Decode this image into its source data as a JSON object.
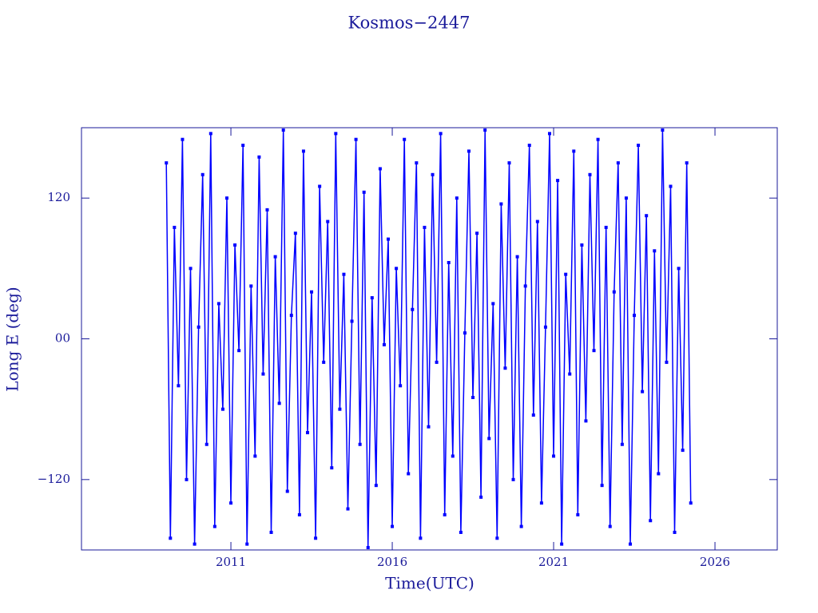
{
  "chart_data": {
    "type": "line",
    "title": "Kosmos−2447",
    "x_label": "Time(UTC)",
    "y_label": "Long E (deg)",
    "xlim": [
      2006.37,
      2027.93
    ],
    "ylim": [
      -180,
      180
    ],
    "xticks": [
      2011,
      2016,
      2021,
      2026
    ],
    "yticks": [
      {
        "value": -120,
        "label": "−120"
      },
      {
        "value": 0,
        "label": "00"
      },
      {
        "value": 120,
        "label": "120"
      }
    ],
    "axis_color": "#1a1a9a",
    "series": [
      {
        "color": "#0000ff",
        "x": [
          2009,
          2009.125,
          2009.25,
          2009.375,
          2009.5,
          2009.625,
          2009.75,
          2009.875,
          2010,
          2010.125,
          2010.25,
          2010.375,
          2010.5,
          2010.625,
          2010.75,
          2010.875,
          2011,
          2011.125,
          2011.25,
          2011.375,
          2011.5,
          2011.625,
          2011.75,
          2011.875,
          2012,
          2012.125,
          2012.25,
          2012.375,
          2012.5,
          2012.625,
          2012.75,
          2012.875,
          2013,
          2013.125,
          2013.25,
          2013.375,
          2013.5,
          2013.625,
          2013.75,
          2013.875,
          2014,
          2014.125,
          2014.25,
          2014.375,
          2014.5,
          2014.625,
          2014.75,
          2014.875,
          2015,
          2015.125,
          2015.25,
          2015.375,
          2015.5,
          2015.625,
          2015.75,
          2015.875,
          2016,
          2016.125,
          2016.25,
          2016.375,
          2016.5,
          2016.625,
          2016.75,
          2016.875,
          2017,
          2017.125,
          2017.25,
          2017.375,
          2017.5,
          2017.625,
          2017.75,
          2017.875,
          2018,
          2018.125,
          2018.25,
          2018.375,
          2018.5,
          2018.625,
          2018.75,
          2018.875,
          2019,
          2019.125,
          2019.25,
          2019.375,
          2019.5,
          2019.625,
          2019.75,
          2019.875,
          2020,
          2020.125,
          2020.25,
          2020.375,
          2020.5,
          2020.625,
          2020.75,
          2020.875,
          2021,
          2021.125,
          2021.25,
          2021.375,
          2021.5,
          2021.625,
          2021.75,
          2021.875,
          2022,
          2022.125,
          2022.25,
          2022.375,
          2022.5,
          2022.625,
          2022.75,
          2022.875,
          2023,
          2023.125,
          2023.25,
          2023.375,
          2023.5,
          2023.625,
          2023.75,
          2023.875,
          2024,
          2024.125,
          2024.25,
          2024.375,
          2024.5,
          2024.625,
          2024.75,
          2024.875,
          2025,
          2025.125,
          2025.25
        ],
        "values": [
          150,
          -170,
          95,
          -40,
          170,
          -120,
          60,
          -175,
          10,
          140,
          -90,
          175,
          -160,
          30,
          -60,
          120,
          -140,
          80,
          -10,
          165,
          -175,
          45,
          -100,
          155,
          -30,
          110,
          -165,
          70,
          -55,
          178,
          -130,
          20,
          90,
          -150,
          160,
          -80,
          40,
          -170,
          130,
          -20,
          100,
          -110,
          175,
          -60,
          55,
          -145,
          15,
          170,
          -90,
          125,
          -178,
          35,
          -125,
          145,
          -5,
          85,
          -160,
          60,
          -40,
          170,
          -115,
          25,
          150,
          -170,
          95,
          -75,
          140,
          -20,
          175,
          -150,
          65,
          -100,
          120,
          -165,
          5,
          160,
          -50,
          90,
          -135,
          178,
          -85,
          30,
          -170,
          115,
          -25,
          150,
          -120,
          70,
          -160,
          45,
          165,
          -65,
          100,
          -140,
          10,
          175,
          -100,
          135,
          -175,
          55,
          -30,
          160,
          -150,
          80,
          -70,
          140,
          -10,
          170,
          -125,
          95,
          -160,
          40,
          150,
          -90,
          120,
          -175,
          20,
          165,
          -45,
          105,
          -155,
          75,
          -115,
          178,
          -20,
          130,
          -165,
          60,
          -95,
          150,
          -140
        ]
      }
    ]
  }
}
